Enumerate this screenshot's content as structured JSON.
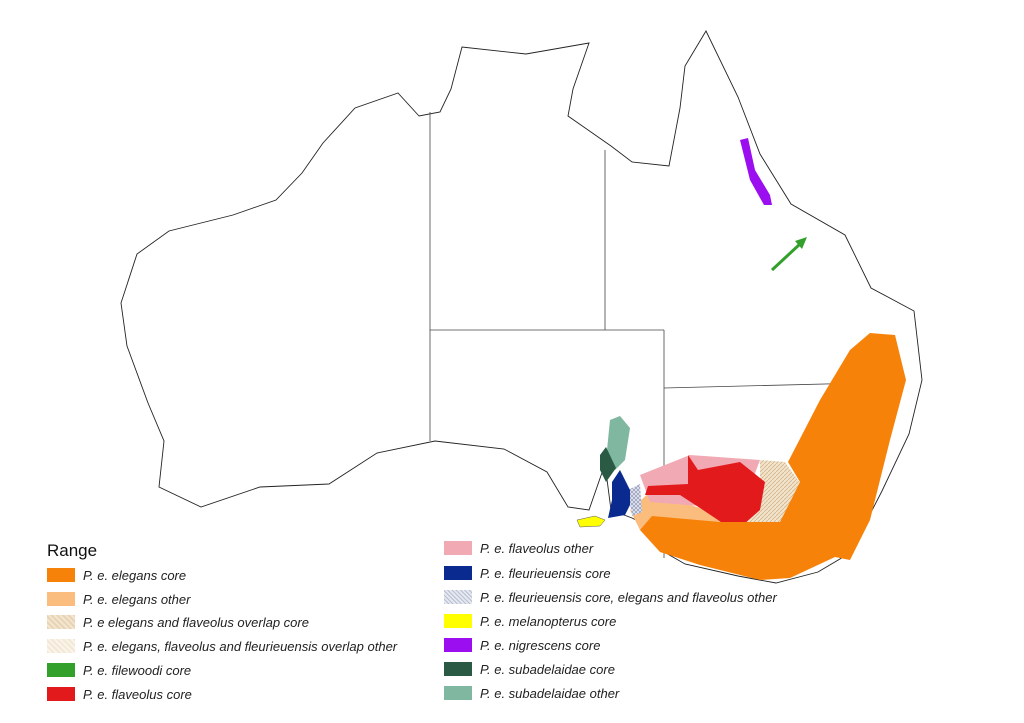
{
  "legend": {
    "title": "Range",
    "left": [
      {
        "label": "P. e. elegans core",
        "color": "#f7820a",
        "pattern": "solid"
      },
      {
        "label": "P. e. elegans other",
        "color": "#fbbd7d",
        "pattern": "solid"
      },
      {
        "label": "P. e elegans and flaveolus overlap core",
        "color": "#e8d4b4",
        "pattern": "hatched"
      },
      {
        "label": "P. e. elegans, flaveolus and  fleurieuensis overlap other",
        "color": "#f6ede0",
        "pattern": "hatched"
      },
      {
        "label": "P. e. filewoodi core",
        "color": "#33a02c",
        "pattern": "solid"
      },
      {
        "label": "P. e. flaveolus core",
        "color": "#e31a1c",
        "pattern": "solid"
      }
    ],
    "right": [
      {
        "label": "P. e. flaveolus other",
        "color": "#f1a9b4",
        "pattern": "solid"
      },
      {
        "label": "P. e. fleurieuensis core",
        "color": "#0b2a8f",
        "pattern": "solid"
      },
      {
        "label": "P. e. fleurieuensis core, elegans and flaveolus other",
        "color": "#c4c9dc",
        "pattern": "hatched"
      },
      {
        "label": "P. e. melanopterus core",
        "color": "#ffff00",
        "pattern": "solid"
      },
      {
        "label": "P. e. nigrescens core",
        "color": "#9b0ef0",
        "pattern": "solid"
      },
      {
        "label": "P. e. subadelaidae core",
        "color": "#2a5a44",
        "pattern": "solid"
      },
      {
        "label": "P. e. subadelaidae other",
        "color": "#7fb7a0",
        "pattern": "solid"
      }
    ]
  },
  "annotations": {
    "arrow_color": "#33a02c",
    "arrow_meaning": "P. e. filewoodi core location"
  }
}
